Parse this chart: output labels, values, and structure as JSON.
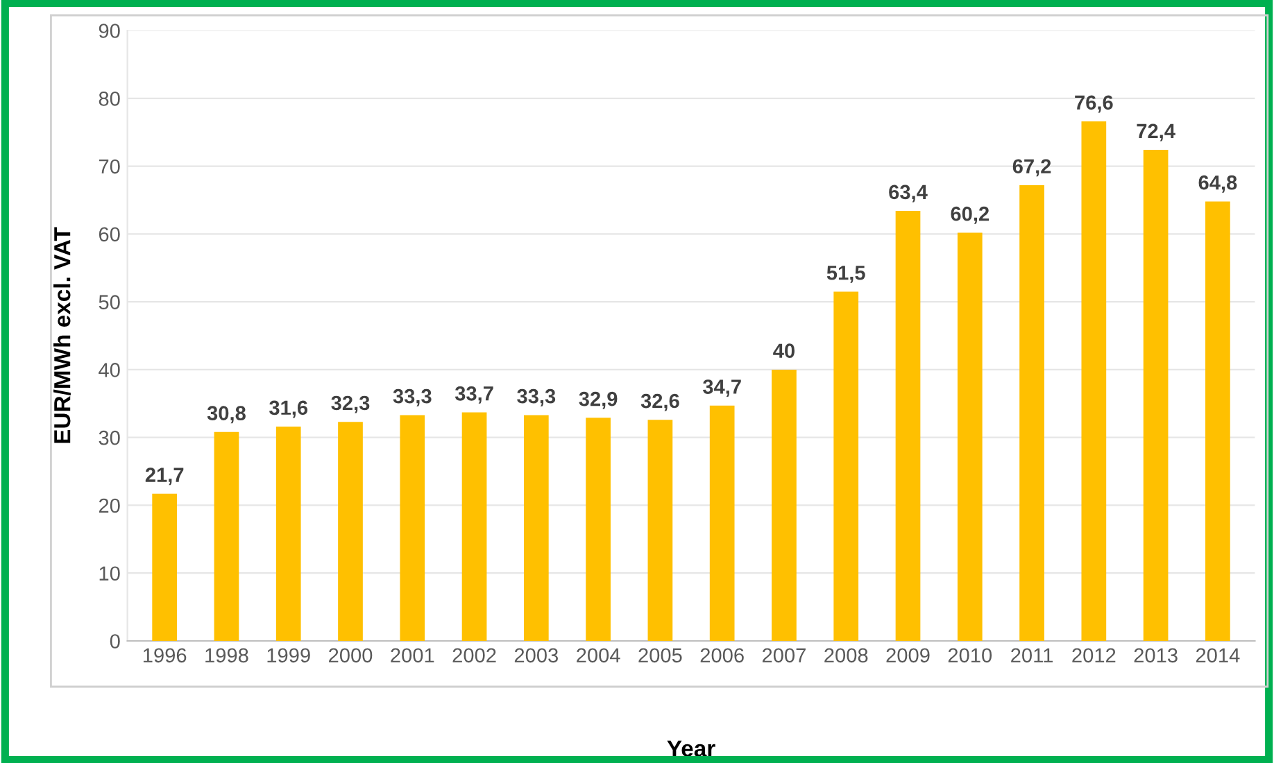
{
  "chart_data": {
    "type": "bar",
    "xlabel": "Year",
    "ylabel": "EUR/MWh excl. VAT",
    "categories": [
      "1996",
      "1998",
      "1999",
      "2000",
      "2001",
      "2002",
      "2003",
      "2004",
      "2005",
      "2006",
      "2007",
      "2008",
      "2009",
      "2010",
      "2011",
      "2012",
      "2013",
      "2014"
    ],
    "values": [
      21.7,
      30.8,
      31.6,
      32.3,
      33.3,
      33.7,
      33.3,
      32.9,
      32.6,
      34.7,
      40,
      51.5,
      63.4,
      60.2,
      67.2,
      76.6,
      72.4,
      64.8
    ],
    "value_labels": [
      "21,7",
      "30,8",
      "31,6",
      "32,3",
      "33,3",
      "33,7",
      "33,3",
      "32,9",
      "32,6",
      "34,7",
      "40",
      "51,5",
      "63,4",
      "60,2",
      "67,2",
      "76,6",
      "72,4",
      "64,8"
    ],
    "color": "#ffc000",
    "ylim": [
      0,
      90
    ],
    "yticks": [
      0,
      10,
      20,
      30,
      40,
      50,
      60,
      70,
      80,
      90
    ],
    "grid": "y",
    "legend": false
  }
}
